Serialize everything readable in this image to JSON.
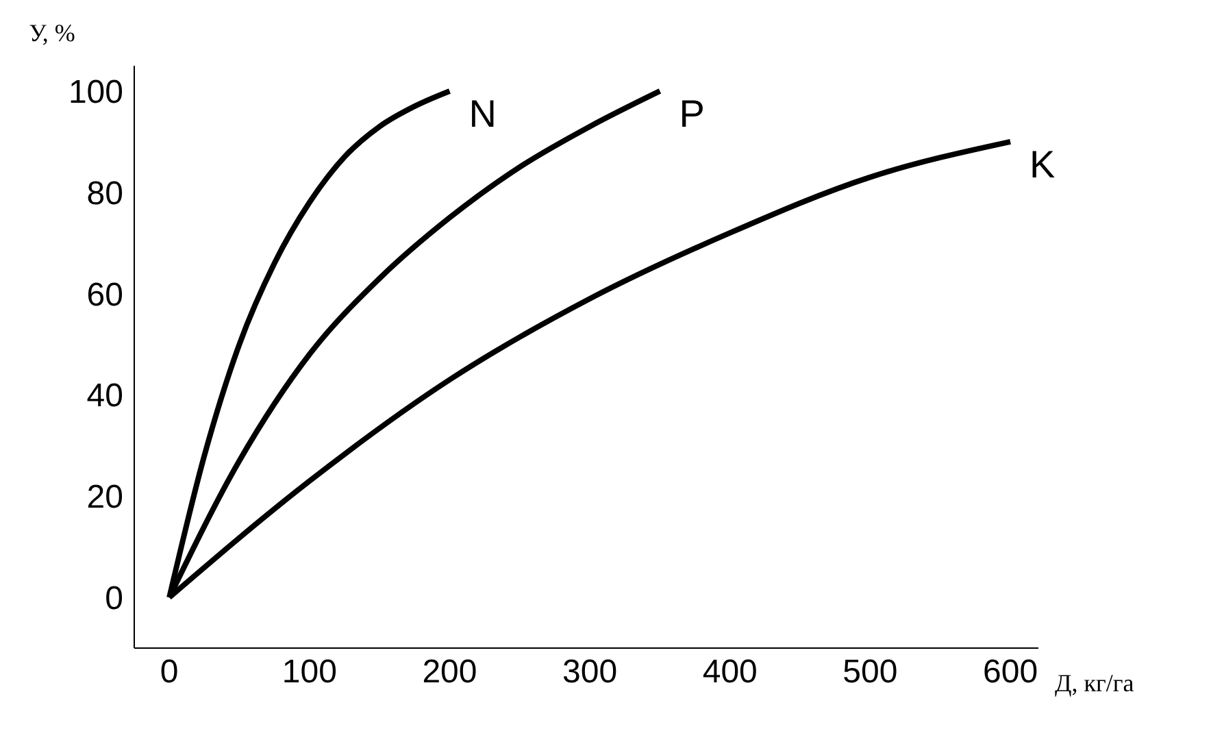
{
  "chart_data": {
    "type": "line",
    "xlabel": "Д, кг/га",
    "ylabel": "У, %",
    "xlim": [
      -25,
      620
    ],
    "xticks": [
      0,
      100,
      200,
      300,
      400,
      500,
      600
    ],
    "ylim": [
      -10,
      105
    ],
    "yticks": [
      0,
      20,
      40,
      60,
      80,
      100
    ],
    "grid": false,
    "legend": false,
    "marker": "none",
    "line_style": "solid",
    "series": [
      {
        "name": "N",
        "color": "#000000",
        "x": [
          0,
          25,
          50,
          75,
          100,
          125,
          150,
          175,
          200
        ],
        "values": [
          0,
          28,
          50,
          66,
          78,
          87,
          93,
          97,
          100
        ]
      },
      {
        "name": "P",
        "color": "#000000",
        "x": [
          0,
          50,
          100,
          150,
          200,
          250,
          300,
          350
        ],
        "values": [
          0,
          27,
          48,
          63,
          75,
          85,
          93,
          100
        ]
      },
      {
        "name": "K",
        "color": "#000000",
        "x": [
          0,
          100,
          200,
          300,
          400,
          500,
          600
        ],
        "values": [
          0,
          23,
          43,
          59,
          72,
          83,
          90
        ]
      }
    ]
  }
}
